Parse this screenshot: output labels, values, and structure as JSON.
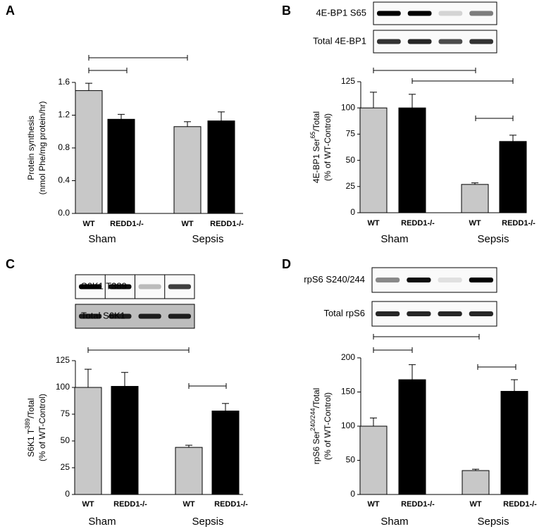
{
  "chart_data": [
    {
      "type": "bar",
      "panel": "A",
      "ylabel": {
        "main": "Protein synthesis"
      },
      "ylabel_sub": "(nmol Phe/mg protein/hr)",
      "categories": [
        "WT",
        "REDD1-/-",
        "WT",
        "REDD1-/-"
      ],
      "groups": [
        "Sham",
        "Sepsis"
      ],
      "values": [
        1.5,
        1.15,
        1.06,
        1.13
      ],
      "errors": [
        0.09,
        0.06,
        0.06,
        0.11
      ],
      "colors": [
        "#c8c8c8",
        "#000000",
        "#c8c8c8",
        "#000000"
      ],
      "ylim": [
        0,
        1.6
      ],
      "yticks": [
        {
          "value": 0,
          "label": "0.0"
        },
        {
          "value": 0.4,
          "label": "0.4"
        },
        {
          "value": 0.8,
          "label": "0.8"
        },
        {
          "value": 1.2,
          "label": "1.2"
        },
        {
          "value": 1.6,
          "label": "1.6"
        }
      ]
    },
    {
      "type": "bar",
      "panel": "B",
      "blots": [
        "4E-BP1 S65",
        "Total 4E-BP1"
      ],
      "ylabel": {
        "main": "4E-BP1  Ser",
        "sup": "65",
        "rest": "/Total"
      },
      "ylabel_sub": "(% of WT-Control)",
      "categories": [
        "WT",
        "REDD1-/-",
        "WT",
        "REDD1-/-"
      ],
      "groups": [
        "Sham",
        "Sepsis"
      ],
      "values": [
        100,
        100,
        27,
        68
      ],
      "errors": [
        15,
        13,
        1.5,
        6
      ],
      "colors": [
        "#c8c8c8",
        "#000000",
        "#c8c8c8",
        "#000000"
      ],
      "ylim": [
        0,
        125
      ],
      "yticks": [
        0,
        25,
        50,
        75,
        100,
        125
      ]
    },
    {
      "type": "bar",
      "panel": "C",
      "blots": [
        "S6K1 T389",
        "Total S6K1"
      ],
      "ylabel": {
        "main": "S6K1 T",
        "sup": "389",
        "rest": "/Total"
      },
      "ylabel_sub": "(% of WT-Control)",
      "categories": [
        "WT",
        "REDD1-/-",
        "WT",
        "REDD1-/-"
      ],
      "groups": [
        "Sham",
        "Sepsis"
      ],
      "values": [
        100,
        101,
        44,
        78
      ],
      "errors": [
        17,
        13,
        2,
        7
      ],
      "colors": [
        "#c8c8c8",
        "#000000",
        "#c8c8c8",
        "#000000"
      ],
      "ylim": [
        0,
        125
      ],
      "yticks": [
        0,
        25,
        50,
        75,
        100,
        125
      ]
    },
    {
      "type": "bar",
      "panel": "D",
      "blots": [
        "rpS6  S240/244",
        "Total rpS6"
      ],
      "ylabel": {
        "main": "rpS6 Ser",
        "sup": "240/244",
        "rest": "/Total"
      },
      "ylabel_sub": "(% of WT-Control)",
      "categories": [
        "WT",
        "REDD1-/-",
        "WT",
        "REDD1-/-"
      ],
      "groups": [
        "Sham",
        "Sepsis"
      ],
      "values": [
        100,
        168,
        35,
        151
      ],
      "errors": [
        12,
        22,
        2,
        17
      ],
      "colors": [
        "#c8c8c8",
        "#000000",
        "#c8c8c8",
        "#000000"
      ],
      "ylim": [
        0,
        200
      ],
      "yticks": [
        0,
        50,
        100,
        150,
        200
      ]
    }
  ]
}
